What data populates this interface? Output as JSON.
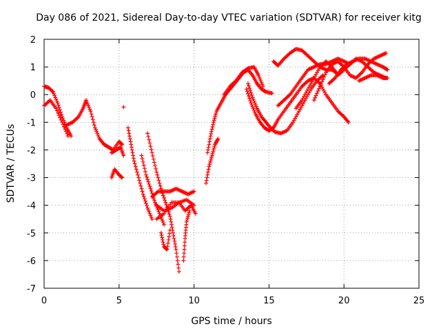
{
  "chart_data": {
    "type": "scatter",
    "title": "Day 086 of 2021, Sidereal Day-to-day VTEC variation (SDTVAR) for receiver kitg",
    "xlabel": "GPS time / hours",
    "ylabel": "SDTVAR / TECUs",
    "xlim": [
      0,
      25
    ],
    "ylim": [
      -7,
      2
    ],
    "xticks": [
      "0",
      "5",
      "10",
      "15",
      "20",
      "25"
    ],
    "yticks": [
      "-7",
      "-6",
      "-5",
      "-4",
      "-3",
      "-2",
      "-1",
      "0",
      "1",
      "2"
    ],
    "grid": true,
    "marker": "plus",
    "color": "#ff0000",
    "tracks": [
      [
        [
          0.0,
          0.3
        ],
        [
          0.3,
          0.25
        ],
        [
          0.6,
          0.1
        ],
        [
          0.9,
          -0.3
        ],
        [
          1.2,
          -0.8
        ],
        [
          1.5,
          -1.2
        ],
        [
          1.8,
          -1.5
        ]
      ],
      [
        [
          0.0,
          -0.4
        ],
        [
          0.4,
          -0.2
        ],
        [
          0.8,
          -0.5
        ],
        [
          1.2,
          -1.0
        ],
        [
          1.6,
          -1.5
        ]
      ],
      [
        [
          1.5,
          -1.1
        ],
        [
          1.9,
          -1.0
        ],
        [
          2.3,
          -0.8
        ],
        [
          2.6,
          -0.5
        ],
        [
          2.8,
          -0.2
        ],
        [
          3.1,
          -0.6
        ],
        [
          3.4,
          -1.2
        ],
        [
          3.7,
          -1.6
        ],
        [
          4.0,
          -1.8
        ],
        [
          4.3,
          -1.9
        ],
        [
          4.6,
          -2.0
        ],
        [
          5.0,
          -1.7
        ],
        [
          5.2,
          -1.8
        ]
      ],
      [
        [
          4.5,
          -2.1
        ],
        [
          4.8,
          -2.0
        ],
        [
          5.1,
          -1.9
        ],
        [
          5.3,
          -2.2
        ]
      ],
      [
        [
          4.5,
          -3.0
        ],
        [
          4.7,
          -2.7
        ],
        [
          5.0,
          -2.9
        ],
        [
          5.2,
          -3.0
        ]
      ],
      [
        [
          5.3,
          -0.45
        ]
      ],
      [
        [
          5.6,
          -1.2
        ],
        [
          5.8,
          -1.8
        ],
        [
          6.0,
          -2.4
        ],
        [
          6.3,
          -3.0
        ],
        [
          6.6,
          -3.6
        ],
        [
          6.9,
          -4.1
        ],
        [
          7.2,
          -4.5
        ]
      ],
      [
        [
          6.5,
          -2.2
        ],
        [
          6.8,
          -2.9
        ],
        [
          7.1,
          -3.4
        ],
        [
          7.4,
          -3.9
        ],
        [
          7.7,
          -4.3
        ],
        [
          8.0,
          -4.7
        ]
      ],
      [
        [
          6.9,
          -1.4
        ],
        [
          7.2,
          -2.1
        ],
        [
          7.5,
          -2.8
        ],
        [
          7.8,
          -3.4
        ],
        [
          8.1,
          -3.9
        ],
        [
          8.4,
          -4.4
        ],
        [
          8.6,
          -5.0
        ],
        [
          8.8,
          -5.6
        ],
        [
          9.0,
          -6.4
        ]
      ],
      [
        [
          7.8,
          -5.0
        ],
        [
          8.0,
          -5.5
        ],
        [
          8.2,
          -5.6
        ],
        [
          8.4,
          -4.9
        ]
      ],
      [
        [
          7.2,
          -3.7
        ],
        [
          7.6,
          -3.5
        ],
        [
          8.0,
          -3.5
        ],
        [
          8.4,
          -3.5
        ],
        [
          8.8,
          -3.4
        ],
        [
          9.2,
          -3.5
        ],
        [
          9.6,
          -3.6
        ],
        [
          10.0,
          -3.5
        ]
      ],
      [
        [
          7.5,
          -4.0
        ],
        [
          8.0,
          -4.2
        ],
        [
          8.5,
          -4.1
        ],
        [
          9.0,
          -3.9
        ],
        [
          9.5,
          -3.8
        ],
        [
          10.0,
          -4.0
        ]
      ],
      [
        [
          7.5,
          -4.5
        ],
        [
          8.0,
          -4.3
        ],
        [
          8.5,
          -3.9
        ],
        [
          9.0,
          -3.9
        ],
        [
          9.4,
          -4.2
        ],
        [
          9.8,
          -4.0
        ],
        [
          10.1,
          -4.3
        ]
      ],
      [
        [
          9.3,
          -6.0
        ],
        [
          9.4,
          -5.2
        ],
        [
          9.5,
          -4.6
        ],
        [
          9.7,
          -4.2
        ]
      ],
      [
        [
          10.8,
          -3.2
        ],
        [
          11.0,
          -2.6
        ],
        [
          11.2,
          -2.2
        ],
        [
          11.4,
          -1.8
        ],
        [
          11.6,
          -1.6
        ]
      ],
      [
        [
          10.9,
          -2.1
        ],
        [
          11.1,
          -1.5
        ],
        [
          11.3,
          -1.0
        ],
        [
          11.5,
          -0.6
        ],
        [
          11.8,
          -0.3
        ],
        [
          12.1,
          0.0
        ],
        [
          12.4,
          0.2
        ],
        [
          12.7,
          0.4
        ],
        [
          13.0,
          0.6
        ],
        [
          13.3,
          0.8
        ],
        [
          13.6,
          0.9
        ],
        [
          13.9,
          0.7
        ],
        [
          14.2,
          0.4
        ],
        [
          14.5,
          0.2
        ],
        [
          14.8,
          0.1
        ],
        [
          15.2,
          0.05
        ]
      ],
      [
        [
          12.0,
          0.0
        ],
        [
          12.4,
          0.3
        ],
        [
          12.8,
          0.5
        ],
        [
          13.2,
          0.8
        ],
        [
          13.6,
          0.95
        ],
        [
          14.0,
          1.0
        ],
        [
          14.3,
          0.7
        ],
        [
          14.6,
          0.3
        ]
      ],
      [
        [
          13.6,
          0.4
        ],
        [
          13.9,
          -0.1
        ],
        [
          14.2,
          -0.5
        ],
        [
          14.5,
          -0.8
        ],
        [
          14.8,
          -1.0
        ],
        [
          15.1,
          -1.2
        ],
        [
          15.4,
          -1.35
        ],
        [
          15.8,
          -1.4
        ],
        [
          16.2,
          -1.3
        ],
        [
          16.6,
          -1.0
        ],
        [
          17.0,
          -0.6
        ],
        [
          17.4,
          -0.2
        ],
        [
          17.8,
          0.2
        ],
        [
          18.2,
          0.5
        ],
        [
          18.6,
          0.7
        ]
      ],
      [
        [
          13.5,
          0.2
        ],
        [
          13.8,
          -0.3
        ],
        [
          14.1,
          -0.7
        ],
        [
          14.4,
          -1.0
        ],
        [
          14.7,
          -1.2
        ],
        [
          15.0,
          -1.3
        ],
        [
          15.3,
          -1.2
        ],
        [
          15.6,
          -0.9
        ],
        [
          16.0,
          -0.6
        ],
        [
          16.4,
          -0.3
        ],
        [
          16.8,
          0.0
        ],
        [
          17.2,
          0.3
        ],
        [
          17.6,
          0.5
        ],
        [
          18.0,
          0.6
        ],
        [
          18.4,
          0.4
        ],
        [
          18.8,
          0.0
        ],
        [
          19.2,
          -0.3
        ],
        [
          19.6,
          -0.6
        ],
        [
          20.0,
          -0.8
        ],
        [
          20.3,
          -1.0
        ]
      ],
      [
        [
          15.3,
          1.2
        ],
        [
          15.6,
          1.05
        ],
        [
          16.0,
          1.3
        ],
        [
          16.4,
          1.5
        ],
        [
          16.8,
          1.65
        ],
        [
          17.2,
          1.6
        ],
        [
          17.6,
          1.4
        ],
        [
          18.0,
          1.2
        ],
        [
          18.4,
          1.0
        ],
        [
          18.8,
          0.9
        ],
        [
          19.2,
          0.9
        ],
        [
          19.5,
          0.8
        ]
      ],
      [
        [
          15.6,
          -0.4
        ],
        [
          16.0,
          -0.2
        ],
        [
          16.4,
          0.0
        ],
        [
          16.8,
          0.3
        ],
        [
          17.2,
          0.6
        ],
        [
          17.6,
          0.9
        ],
        [
          18.0,
          1.0
        ],
        [
          18.4,
          1.1
        ],
        [
          18.8,
          1.1
        ],
        [
          19.2,
          1.2
        ],
        [
          19.6,
          1.3
        ],
        [
          20.0,
          1.2
        ],
        [
          20.4,
          1.1
        ]
      ],
      [
        [
          16.8,
          -0.5
        ],
        [
          17.2,
          -0.2
        ],
        [
          17.6,
          0.2
        ],
        [
          18.0,
          0.6
        ],
        [
          18.4,
          1.0
        ],
        [
          18.8,
          1.2
        ],
        [
          19.2,
          1.0
        ],
        [
          19.6,
          0.7
        ],
        [
          20.0,
          0.9
        ],
        [
          20.4,
          1.1
        ],
        [
          20.8,
          1.3
        ],
        [
          21.2,
          1.2
        ],
        [
          21.6,
          1.0
        ],
        [
          22.0,
          0.8
        ],
        [
          22.4,
          0.7
        ],
        [
          22.8,
          0.6
        ]
      ],
      [
        [
          18.0,
          -0.2
        ],
        [
          18.4,
          0.3
        ],
        [
          18.8,
          0.8
        ],
        [
          19.2,
          1.1
        ],
        [
          19.6,
          1.2
        ],
        [
          20.0,
          1.0
        ],
        [
          20.4,
          0.7
        ],
        [
          20.8,
          0.6
        ],
        [
          21.2,
          0.8
        ],
        [
          21.6,
          1.1
        ],
        [
          22.0,
          1.3
        ],
        [
          22.4,
          1.4
        ],
        [
          22.8,
          1.5
        ]
      ],
      [
        [
          19.0,
          0.4
        ],
        [
          19.4,
          0.6
        ],
        [
          19.8,
          0.9
        ],
        [
          20.2,
          1.1
        ],
        [
          20.6,
          1.2
        ],
        [
          21.0,
          1.3
        ],
        [
          21.4,
          1.3
        ],
        [
          21.8,
          1.2
        ],
        [
          22.2,
          1.1
        ],
        [
          22.6,
          1.0
        ],
        [
          22.9,
          0.9
        ]
      ],
      [
        [
          21.0,
          0.5
        ],
        [
          21.4,
          0.6
        ],
        [
          21.8,
          0.7
        ],
        [
          22.2,
          0.7
        ],
        [
          22.6,
          0.6
        ],
        [
          22.9,
          0.6
        ]
      ]
    ]
  }
}
